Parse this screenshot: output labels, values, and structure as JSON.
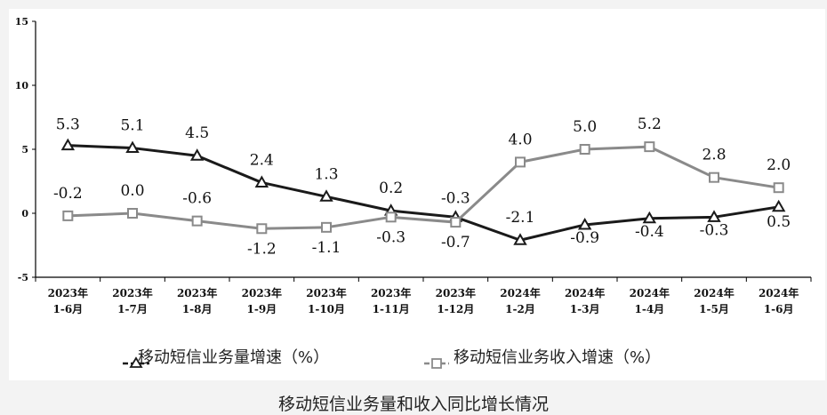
{
  "caption": "移动短信业务量和收入同比增长情况",
  "chart_data": {
    "type": "line",
    "categories": [
      [
        "2023年",
        "1-6月"
      ],
      [
        "2023年",
        "1-7月"
      ],
      [
        "2023年",
        "1-8月"
      ],
      [
        "2023年",
        "1-9月"
      ],
      [
        "2023年",
        "1-10月"
      ],
      [
        "2023年",
        "1-11月"
      ],
      [
        "2023年",
        "1-12月"
      ],
      [
        "2024年",
        "1-2月"
      ],
      [
        "2024年",
        "1-3月"
      ],
      [
        "2024年",
        "1-4月"
      ],
      [
        "2024年",
        "1-5月"
      ],
      [
        "2024年",
        "1-6月"
      ]
    ],
    "ylim": [
      -5,
      15
    ],
    "yticks": [
      -5,
      0,
      5,
      10,
      15
    ],
    "grid": false,
    "legend": "bottom",
    "series": [
      {
        "name": "移动短信业务量增速（%）",
        "marker": "triangle",
        "color": "#1a1a1a",
        "values": [
          5.3,
          5.1,
          4.5,
          2.4,
          1.3,
          0.2,
          -0.3,
          -2.1,
          -0.9,
          -0.4,
          -0.3,
          0.5
        ],
        "labels": [
          "5.3",
          "5.1",
          "4.5",
          "2.4",
          "1.3",
          "0.2",
          "-0.3",
          "-2.1",
          "-0.9",
          "-0.4",
          "-0.3",
          "0.5"
        ]
      },
      {
        "name": "移动短信业务收入增速（%）",
        "marker": "square",
        "color": "#8a8a8a",
        "values": [
          -0.2,
          0.0,
          -0.6,
          -1.2,
          -1.1,
          -0.3,
          -0.7,
          4.0,
          5.0,
          5.2,
          2.8,
          2.0
        ],
        "labels": [
          "-0.2",
          "0.0",
          "-0.6",
          "-1.2",
          "-1.1",
          "-0.3",
          "-0.7",
          "4.0",
          "5.0",
          "5.2",
          "2.8",
          "2.0"
        ]
      }
    ]
  }
}
